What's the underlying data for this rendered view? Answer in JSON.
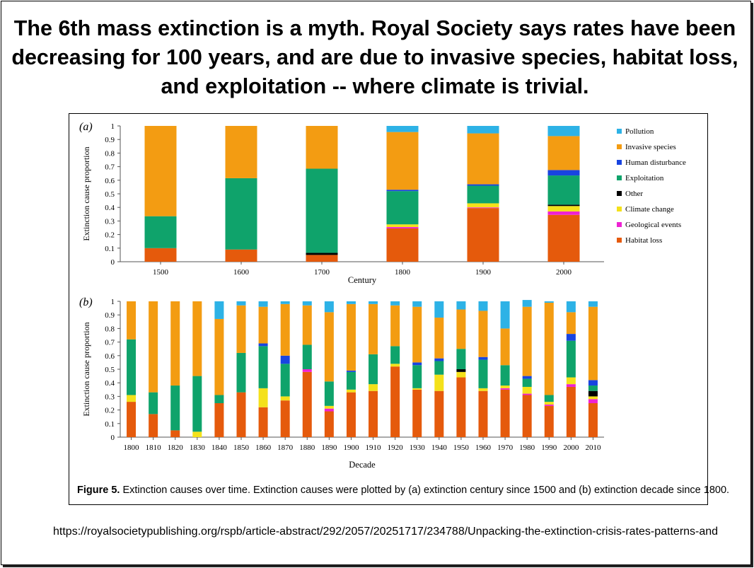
{
  "headline": "The 6th mass extinction is a myth. Royal Society says rates have been decreasing for 100 years, and are due to invasive species, habitat loss, and exploitation -- where climate is trivial.",
  "source_url": "https://royalsocietypublishing.org/rspb/article-abstract/292/2057/20251717/234788/Unpacking-the-extinction-crisis-rates-patterns-and",
  "figure": {
    "caption_label": "Figure 5.",
    "caption_text": " Extinction causes over time. Extinction causes were plotted by (a) extinction century since 1500 and (b) extinction decade since 1800."
  },
  "legend": [
    {
      "name": "Pollution",
      "color": "#2DB2E6"
    },
    {
      "name": "Invasive species",
      "color": "#F39C12"
    },
    {
      "name": "Human disturbance",
      "color": "#1844E0"
    },
    {
      "name": "Exploitation",
      "color": "#0FA36B"
    },
    {
      "name": "Other",
      "color": "#000000"
    },
    {
      "name": "Climate change",
      "color": "#F4E11A"
    },
    {
      "name": "Geological events",
      "color": "#EE22D3"
    },
    {
      "name": "Habitat loss",
      "color": "#E55A0C"
    }
  ],
  "chart_data": [
    {
      "type": "bar",
      "stacked": true,
      "panel_label": "(a)",
      "xlabel": "Century",
      "ylabel": "Extinction cause proportion",
      "ylim": [
        0,
        1
      ],
      "yticks": [
        "0",
        "0.1",
        "0.2",
        "0.3",
        "0.4",
        "0.5",
        "0.6",
        "0.7",
        "0.8",
        "0.9",
        "1"
      ],
      "categories": [
        "1500",
        "1600",
        "1700",
        "1800",
        "1900",
        "2000"
      ],
      "series": [
        {
          "name": "Habitat loss",
          "values": [
            0.1,
            0.09,
            0.05,
            0.245,
            0.395,
            0.345
          ]
        },
        {
          "name": "Geological events",
          "values": [
            0,
            0,
            0,
            0.01,
            0.005,
            0.025
          ]
        },
        {
          "name": "Climate change",
          "values": [
            0,
            0,
            0,
            0.02,
            0.03,
            0.04
          ]
        },
        {
          "name": "Other",
          "values": [
            0,
            0,
            0.015,
            0,
            0,
            0.01
          ]
        },
        {
          "name": "Exploitation",
          "values": [
            0.235,
            0.525,
            0.62,
            0.245,
            0.13,
            0.215
          ]
        },
        {
          "name": "Human disturbance",
          "values": [
            0,
            0,
            0,
            0.01,
            0.01,
            0.04
          ]
        },
        {
          "name": "Invasive species",
          "values": [
            0.665,
            0.385,
            0.315,
            0.425,
            0.375,
            0.25
          ]
        },
        {
          "name": "Pollution",
          "values": [
            0,
            0,
            0,
            0.045,
            0.055,
            0.075
          ]
        }
      ]
    },
    {
      "type": "bar",
      "stacked": true,
      "panel_label": "(b)",
      "xlabel": "Decade",
      "ylabel": "Extinction cause proportion",
      "ylim": [
        0,
        1
      ],
      "yticks": [
        "0",
        "0.1",
        "0.2",
        "0.3",
        "0.4",
        "0.5",
        "0.6",
        "0.7",
        "0.8",
        "0.9",
        "1"
      ],
      "categories": [
        "1800",
        "1810",
        "1820",
        "1830",
        "1840",
        "1850",
        "1860",
        "1870",
        "1880",
        "1890",
        "1900",
        "1910",
        "1920",
        "1930",
        "1940",
        "1950",
        "1960",
        "1970",
        "1980",
        "1990",
        "2000",
        "2010"
      ],
      "series": [
        {
          "name": "Habitat loss",
          "values": [
            0.26,
            0.17,
            0.05,
            0,
            0.25,
            0.33,
            0.22,
            0.27,
            0.48,
            0.19,
            0.33,
            0.34,
            0.52,
            0.35,
            0.34,
            0.44,
            0.34,
            0.35,
            0.31,
            0.23,
            0.37,
            0.25
          ]
        },
        {
          "name": "Geological events",
          "values": [
            0,
            0,
            0,
            0,
            0,
            0,
            0,
            0,
            0.02,
            0.02,
            0,
            0,
            0,
            0,
            0,
            0,
            0,
            0.01,
            0.01,
            0.01,
            0.02,
            0.03
          ]
        },
        {
          "name": "Climate change",
          "values": [
            0.05,
            0,
            0,
            0.04,
            0,
            0,
            0.14,
            0.03,
            0,
            0.02,
            0.02,
            0.05,
            0.02,
            0.01,
            0.12,
            0.04,
            0.02,
            0.02,
            0.05,
            0.02,
            0.05,
            0.02
          ]
        },
        {
          "name": "Other",
          "values": [
            0,
            0,
            0,
            0,
            0,
            0,
            0,
            0,
            0,
            0,
            0,
            0,
            0,
            0,
            0,
            0.02,
            0,
            0,
            0,
            0,
            0,
            0.04
          ]
        },
        {
          "name": "Exploitation",
          "values": [
            0.41,
            0.16,
            0.33,
            0.41,
            0.06,
            0.29,
            0.31,
            0.24,
            0.18,
            0.18,
            0.13,
            0.22,
            0.13,
            0.17,
            0.1,
            0.15,
            0.21,
            0.15,
            0.06,
            0.05,
            0.27,
            0.04
          ]
        },
        {
          "name": "Human disturbance",
          "values": [
            0,
            0,
            0,
            0,
            0,
            0,
            0.02,
            0.06,
            0,
            0,
            0.01,
            0,
            0,
            0.02,
            0.02,
            0,
            0.02,
            0,
            0.02,
            0,
            0.05,
            0.04
          ]
        },
        {
          "name": "Invasive species",
          "values": [
            0.28,
            0.67,
            0.62,
            0.55,
            0.56,
            0.35,
            0.27,
            0.38,
            0.29,
            0.51,
            0.49,
            0.37,
            0.3,
            0.41,
            0.3,
            0.29,
            0.34,
            0.27,
            0.51,
            0.68,
            0.16,
            0.54
          ]
        },
        {
          "name": "Pollution",
          "values": [
            0,
            0,
            0,
            0,
            0.13,
            0.03,
            0.04,
            0.02,
            0.03,
            0.08,
            0.02,
            0.02,
            0.03,
            0.04,
            0.12,
            0.06,
            0.07,
            0.2,
            0.05,
            0.01,
            0.08,
            0.04
          ]
        }
      ]
    }
  ]
}
